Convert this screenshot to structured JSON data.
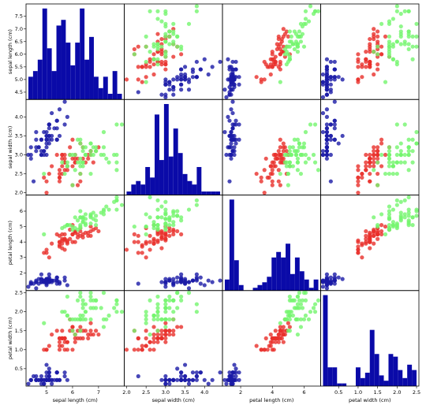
{
  "chart_data": {
    "type": "scatter_matrix",
    "hist_color": "#0a0aa8",
    "variables": [
      {
        "label": "sepal length (cm)",
        "lim": [
          4.21,
          7.99
        ],
        "yticks": [
          4.5,
          {
            "value": 5.0,
            "label": "5.0"
          },
          5.5,
          {
            "value": 6.0,
            "label": "6.0"
          },
          6.5,
          {
            "value": 7.0,
            "label": "7.0"
          },
          7.5
        ],
        "xticks": [
          5,
          6,
          7
        ],
        "bins": [
          4.3,
          4.48,
          4.66,
          4.84,
          5.02,
          5.2,
          5.38,
          5.56,
          5.74,
          5.92,
          6.1,
          6.28,
          6.46,
          6.64,
          6.82,
          7.0,
          7.18,
          7.36,
          7.54,
          7.72,
          7.9
        ],
        "counts": [
          4,
          5,
          7,
          16,
          9,
          5,
          13,
          14,
          10,
          6,
          10,
          16,
          7,
          11,
          4,
          2,
          4,
          1,
          5,
          1
        ]
      },
      {
        "label": "sepal width (cm)",
        "lim": [
          1.94,
          4.46
        ],
        "yticks": [
          {
            "value": 2.0,
            "label": "2.0"
          },
          2.5,
          {
            "value": 3.0,
            "label": "3.0"
          },
          3.5,
          {
            "value": 4.0,
            "label": "4.0"
          }
        ],
        "xticks": [
          {
            "value": 2.0,
            "label": "2.0"
          },
          2.5,
          {
            "value": 3.0,
            "label": "3.0"
          },
          3.5,
          {
            "value": 4.0,
            "label": "4.0"
          }
        ],
        "bins": [
          2.0,
          2.12,
          2.24,
          2.36,
          2.48,
          2.6,
          2.72,
          2.84,
          2.96,
          3.08,
          3.2,
          3.32,
          3.44,
          3.56,
          3.68,
          3.8,
          3.92,
          4.04,
          4.16,
          4.28,
          4.4
        ],
        "counts": [
          1,
          3,
          4,
          3,
          8,
          5,
          23,
          10,
          26,
          11,
          19,
          12,
          6,
          4,
          3,
          8,
          1,
          1,
          1,
          1
        ]
      },
      {
        "label": "petal length (cm)",
        "lim": [
          0.8525,
          7.0475
        ],
        "yticks": [
          2,
          3,
          4,
          5,
          6
        ],
        "xticks": [
          2,
          4,
          6
        ],
        "bins": [
          1.0,
          1.295,
          1.59,
          1.885,
          2.18,
          2.475,
          2.77,
          3.065,
          3.36,
          3.655,
          3.95,
          4.245,
          4.54,
          4.835,
          5.13,
          5.425,
          5.72,
          6.015,
          6.31,
          6.605,
          6.9
        ],
        "counts": [
          4,
          33,
          11,
          2,
          0,
          0,
          1,
          2,
          3,
          5,
          12,
          14,
          12,
          17,
          6,
          12,
          7,
          4,
          1,
          4
        ]
      },
      {
        "label": "petal width (cm)",
        "lim": [
          0.04,
          2.56
        ],
        "yticks": [
          0.5,
          {
            "value": 1.0,
            "label": "1.0"
          },
          1.5,
          {
            "value": 2.0,
            "label": "2.0"
          },
          2.5
        ],
        "xticks": [
          0.5,
          {
            "value": 1.0,
            "label": "1.0"
          },
          1.5,
          {
            "value": 2.0,
            "label": "2.0"
          },
          2.5
        ],
        "bins": [
          0.1,
          0.22,
          0.34,
          0.46,
          0.58,
          0.7,
          0.82,
          0.94,
          1.06,
          1.18,
          1.3,
          1.42,
          1.54,
          1.66,
          1.78,
          1.9,
          2.02,
          2.14,
          2.26,
          2.38,
          2.5
        ],
        "counts": [
          34,
          7,
          7,
          1,
          1,
          0,
          0,
          7,
          3,
          5,
          21,
          12,
          4,
          2,
          12,
          11,
          6,
          3,
          8,
          6
        ]
      }
    ],
    "series": [
      {
        "color": "#1a1aa6",
        "columns": [
          [
            5.1,
            4.9,
            4.7,
            4.6,
            5.0,
            5.4,
            4.6,
            5.0,
            4.4,
            4.9,
            5.4,
            4.8,
            4.8,
            4.3,
            5.8,
            5.7,
            5.4,
            5.1,
            5.7,
            5.1,
            5.4,
            5.1,
            4.6,
            5.1,
            4.8,
            5.0,
            5.0,
            5.2,
            5.2,
            4.7,
            4.8,
            5.4,
            5.2,
            5.5,
            4.9,
            5.0,
            5.5,
            4.9,
            4.4,
            5.1,
            5.0,
            4.5,
            4.4,
            5.0,
            5.1,
            4.8,
            5.1,
            4.6,
            5.3,
            5.0
          ],
          [
            3.5,
            3.0,
            3.2,
            3.1,
            3.6,
            3.9,
            3.4,
            3.4,
            2.9,
            3.1,
            3.7,
            3.4,
            3.0,
            3.0,
            4.0,
            4.4,
            3.9,
            3.5,
            3.8,
            3.8,
            3.4,
            3.7,
            3.6,
            3.3,
            3.4,
            3.0,
            3.4,
            3.5,
            3.4,
            3.2,
            3.1,
            3.4,
            4.1,
            4.2,
            3.1,
            3.2,
            3.5,
            3.6,
            3.0,
            3.4,
            3.5,
            2.3,
            3.2,
            3.5,
            3.8,
            3.0,
            3.8,
            3.2,
            3.7,
            3.3
          ],
          [
            1.4,
            1.4,
            1.3,
            1.5,
            1.4,
            1.7,
            1.4,
            1.5,
            1.4,
            1.5,
            1.5,
            1.6,
            1.4,
            1.1,
            1.2,
            1.5,
            1.3,
            1.4,
            1.7,
            1.5,
            1.7,
            1.5,
            1.0,
            1.7,
            1.9,
            1.6,
            1.6,
            1.5,
            1.4,
            1.6,
            1.6,
            1.5,
            1.5,
            1.4,
            1.5,
            1.2,
            1.3,
            1.4,
            1.3,
            1.5,
            1.3,
            1.3,
            1.3,
            1.6,
            1.9,
            1.4,
            1.6,
            1.4,
            1.5,
            1.4
          ],
          [
            0.2,
            0.2,
            0.2,
            0.2,
            0.2,
            0.4,
            0.3,
            0.2,
            0.2,
            0.1,
            0.2,
            0.2,
            0.1,
            0.1,
            0.2,
            0.4,
            0.4,
            0.3,
            0.3,
            0.3,
            0.2,
            0.4,
            0.2,
            0.5,
            0.2,
            0.2,
            0.4,
            0.2,
            0.2,
            0.2,
            0.2,
            0.4,
            0.1,
            0.2,
            0.2,
            0.2,
            0.2,
            0.1,
            0.2,
            0.2,
            0.3,
            0.3,
            0.2,
            0.6,
            0.4,
            0.3,
            0.2,
            0.2,
            0.2,
            0.2
          ]
        ]
      },
      {
        "color": "#e8302a",
        "columns": [
          [
            7.0,
            6.4,
            6.9,
            5.5,
            6.5,
            5.7,
            6.3,
            4.9,
            6.6,
            5.2,
            5.0,
            5.9,
            6.0,
            6.1,
            5.6,
            6.7,
            5.6,
            5.8,
            6.2,
            5.6,
            5.9,
            6.1,
            6.3,
            6.1,
            6.4,
            6.6,
            6.8,
            6.7,
            6.0,
            5.7,
            5.5,
            5.5,
            5.8,
            6.0,
            5.4,
            6.0,
            6.7,
            6.3,
            5.6,
            5.5,
            5.5,
            6.1,
            5.8,
            5.0,
            5.6,
            5.7,
            5.7,
            6.2,
            5.1,
            5.7
          ],
          [
            3.2,
            3.2,
            3.1,
            2.3,
            2.8,
            2.8,
            3.3,
            2.4,
            2.9,
            2.7,
            2.0,
            3.0,
            2.2,
            2.9,
            2.9,
            3.1,
            3.0,
            2.7,
            2.2,
            2.5,
            3.2,
            2.8,
            2.5,
            2.8,
            2.9,
            3.0,
            2.8,
            3.0,
            2.9,
            2.6,
            2.4,
            2.4,
            2.7,
            2.7,
            3.0,
            3.4,
            3.1,
            2.3,
            3.0,
            2.5,
            2.6,
            3.0,
            2.6,
            2.3,
            2.7,
            3.0,
            2.9,
            2.9,
            2.5,
            2.8
          ],
          [
            4.7,
            4.5,
            4.9,
            4.0,
            4.6,
            4.5,
            4.7,
            3.3,
            4.6,
            3.9,
            3.5,
            4.2,
            4.0,
            4.7,
            3.6,
            4.4,
            4.5,
            4.1,
            4.5,
            3.9,
            4.8,
            4.0,
            4.9,
            4.7,
            4.3,
            4.4,
            4.8,
            5.0,
            4.5,
            3.5,
            3.8,
            3.7,
            3.9,
            5.1,
            4.5,
            4.5,
            4.7,
            4.4,
            4.1,
            4.0,
            4.4,
            4.6,
            4.0,
            3.3,
            4.2,
            4.2,
            4.2,
            4.3,
            3.0,
            4.1
          ],
          [
            1.4,
            1.5,
            1.5,
            1.3,
            1.5,
            1.3,
            1.6,
            1.0,
            1.3,
            1.4,
            1.0,
            1.5,
            1.0,
            1.4,
            1.3,
            1.4,
            1.5,
            1.0,
            1.5,
            1.1,
            1.8,
            1.3,
            1.5,
            1.2,
            1.3,
            1.4,
            1.4,
            1.7,
            1.5,
            1.0,
            1.1,
            1.0,
            1.2,
            1.6,
            1.5,
            1.6,
            1.5,
            1.3,
            1.3,
            1.3,
            1.2,
            1.4,
            1.2,
            1.0,
            1.3,
            1.2,
            1.3,
            1.3,
            1.1,
            1.3
          ]
        ]
      },
      {
        "color": "#74f56e",
        "columns": [
          [
            6.3,
            5.8,
            7.1,
            6.3,
            6.5,
            7.6,
            4.9,
            7.3,
            6.7,
            7.2,
            6.5,
            6.4,
            6.8,
            5.7,
            5.8,
            6.4,
            6.5,
            7.7,
            7.7,
            6.0,
            6.9,
            5.6,
            7.7,
            6.3,
            6.7,
            7.2,
            6.2,
            6.1,
            6.4,
            7.2,
            7.4,
            7.9,
            6.4,
            6.3,
            6.1,
            7.7,
            6.3,
            6.4,
            6.0,
            6.9,
            6.7,
            6.9,
            5.8,
            6.8,
            6.7,
            6.7,
            6.3,
            6.5,
            6.2,
            5.9
          ],
          [
            3.3,
            2.7,
            3.0,
            2.9,
            3.0,
            3.0,
            2.5,
            2.9,
            2.5,
            3.6,
            3.2,
            2.7,
            3.0,
            2.5,
            2.8,
            3.2,
            3.0,
            3.8,
            2.6,
            2.2,
            3.2,
            2.8,
            2.8,
            2.7,
            3.3,
            3.2,
            2.8,
            3.0,
            2.8,
            3.0,
            2.8,
            3.8,
            2.8,
            2.8,
            2.6,
            3.0,
            3.4,
            3.1,
            3.0,
            3.1,
            3.1,
            3.1,
            2.7,
            3.2,
            3.3,
            3.0,
            2.5,
            3.0,
            3.4,
            3.0
          ],
          [
            6.0,
            5.1,
            5.9,
            5.6,
            5.8,
            6.6,
            4.5,
            6.3,
            5.8,
            6.1,
            5.1,
            5.3,
            5.5,
            5.0,
            5.1,
            5.3,
            5.5,
            6.7,
            6.9,
            5.0,
            5.7,
            4.9,
            6.7,
            4.9,
            5.7,
            6.0,
            4.8,
            4.9,
            5.6,
            5.8,
            6.1,
            6.4,
            5.6,
            5.1,
            5.6,
            6.1,
            5.6,
            5.5,
            4.8,
            5.4,
            5.6,
            5.1,
            5.1,
            5.9,
            5.7,
            5.2,
            5.0,
            5.2,
            5.4,
            5.1
          ],
          [
            2.5,
            1.9,
            2.1,
            1.8,
            2.2,
            2.1,
            1.7,
            1.8,
            1.8,
            2.5,
            2.0,
            1.9,
            2.1,
            2.0,
            2.4,
            2.3,
            1.8,
            2.2,
            2.3,
            1.5,
            2.3,
            2.0,
            2.0,
            1.8,
            2.1,
            1.8,
            1.8,
            1.8,
            2.1,
            1.6,
            1.9,
            2.0,
            2.2,
            1.5,
            1.4,
            2.3,
            2.4,
            1.8,
            1.8,
            2.1,
            2.4,
            2.3,
            1.9,
            2.3,
            2.5,
            2.3,
            1.9,
            2.0,
            2.3,
            1.8
          ]
        ]
      }
    ]
  }
}
